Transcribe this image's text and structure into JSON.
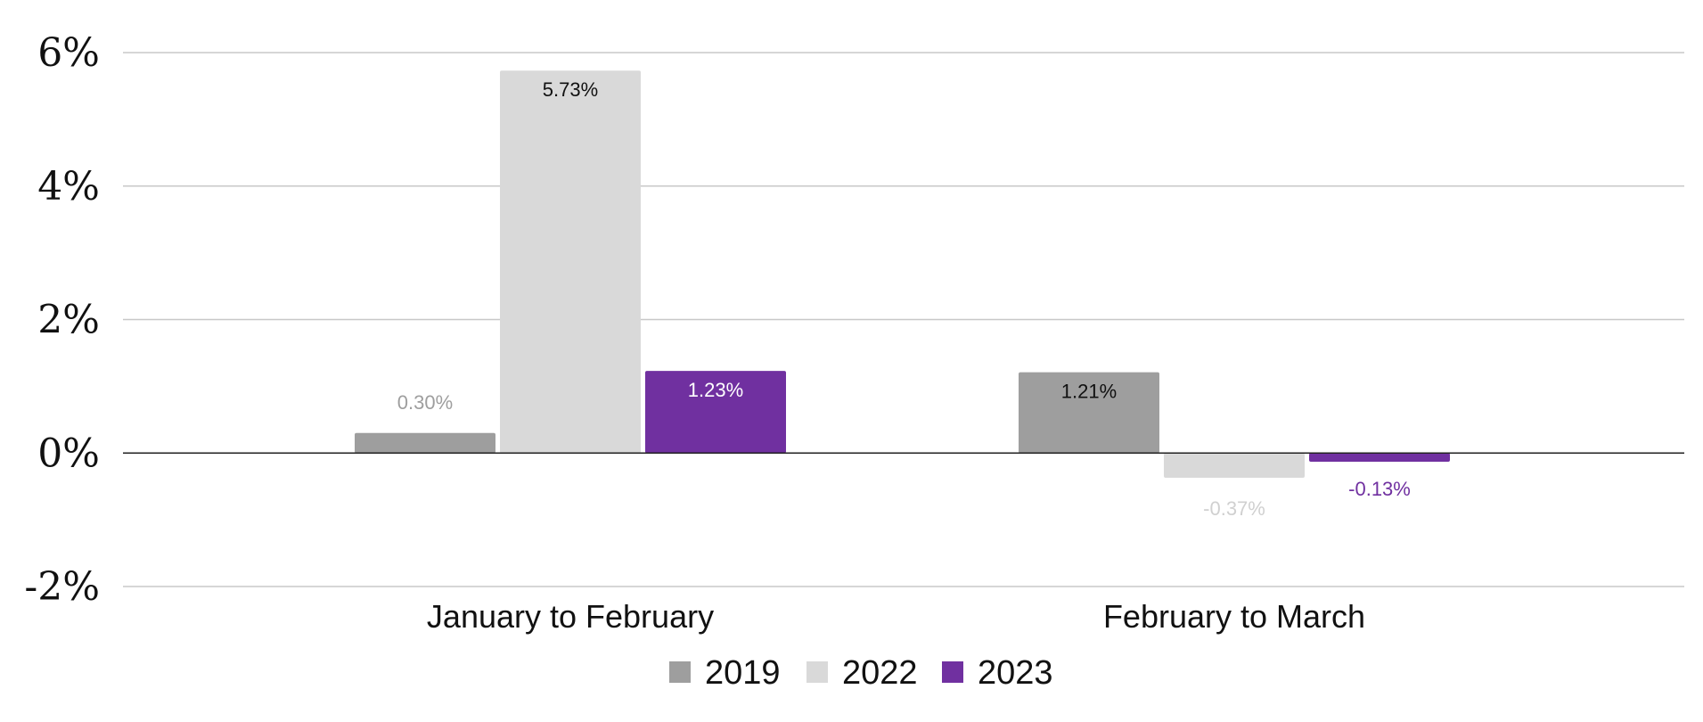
{
  "chart_data": {
    "type": "bar",
    "categories": [
      "January to February",
      "February to March"
    ],
    "series": [
      {
        "name": "2019",
        "color": "#9e9e9e",
        "values": [
          0.3,
          1.21
        ],
        "labels": [
          "0.30%",
          "1.21%"
        ],
        "label_colors": [
          "#9e9e9e",
          "#111111"
        ]
      },
      {
        "name": "2022",
        "color": "#d9d9d9",
        "values": [
          5.73,
          -0.37
        ],
        "labels": [
          "5.73%",
          "-0.37%"
        ],
        "label_colors": [
          "#111111",
          "#d0d0d0"
        ]
      },
      {
        "name": "2023",
        "color": "#7030a0",
        "values": [
          1.23,
          -0.13
        ],
        "labels": [
          "1.23%",
          "-0.13%"
        ],
        "label_colors": [
          "#ffffff",
          "#7030a0"
        ]
      }
    ],
    "yticks": [
      "6%",
      "4%",
      "2%",
      "0%",
      "-2%"
    ],
    "ytick_values": [
      6,
      4,
      2,
      0,
      -2
    ],
    "ylim": [
      -2,
      6
    ],
    "grid": true,
    "legend_position": "bottom",
    "title": "",
    "xlabel": "",
    "ylabel": ""
  }
}
